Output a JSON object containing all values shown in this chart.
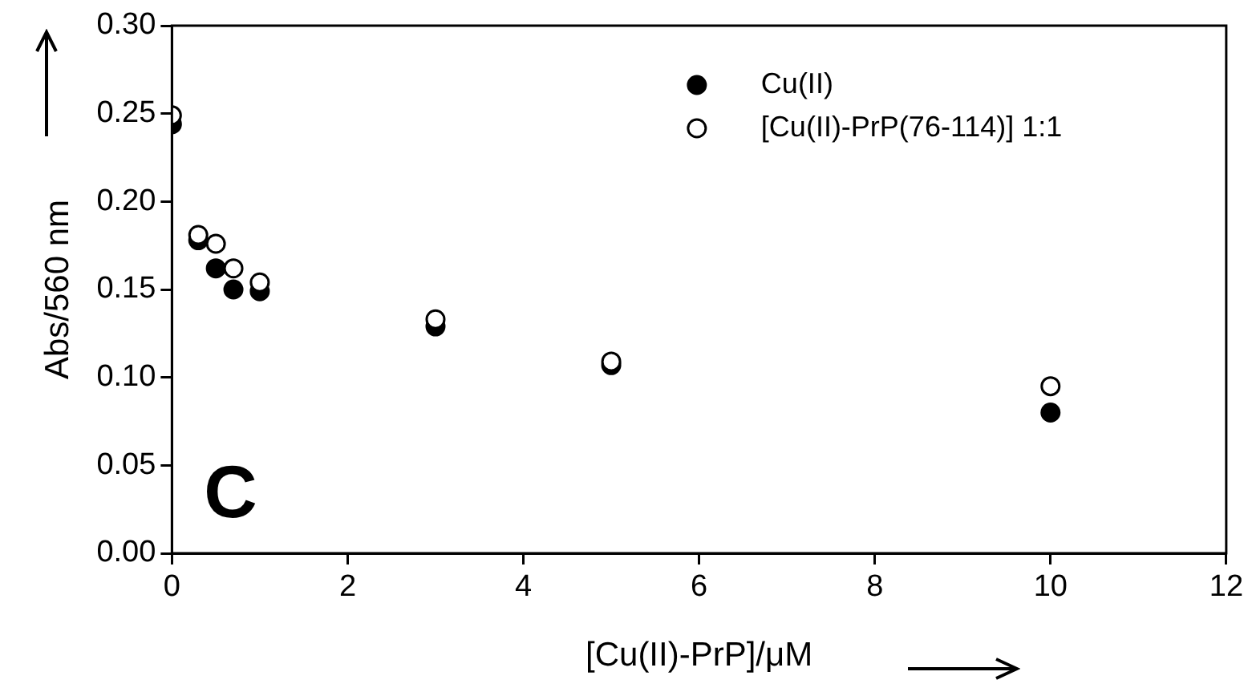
{
  "chart_data": {
    "type": "scatter",
    "xlabel": "[Cu(II)-PrP]/μM",
    "ylabel": "Abs/560 nm",
    "annotations": [
      "C"
    ],
    "xlim": [
      0,
      12
    ],
    "xticks": [
      0,
      2,
      4,
      6,
      8,
      10,
      12
    ],
    "ylim": [
      0,
      0.3
    ],
    "yticks": [
      {
        "value": 0,
        "label": "0.00"
      },
      {
        "value": 0.05,
        "label": "0.05"
      },
      {
        "value": 0.1,
        "label": "0.10"
      },
      {
        "value": 0.15,
        "label": "0.15"
      },
      {
        "value": 0.2,
        "label": "0.20"
      },
      {
        "value": 0.25,
        "label": "0.25"
      },
      {
        "value": 0.3,
        "label": "0.30"
      }
    ],
    "grid": false,
    "legend": "top right",
    "marker": "circle",
    "series": [
      {
        "name": "Cu(II)",
        "color": "#000000",
        "x": [
          0,
          0.3,
          0.5,
          0.7,
          1,
          3,
          5,
          10
        ],
        "values": [
          0.244,
          0.178,
          0.162,
          0.15,
          0.149,
          0.129,
          0.107,
          0.08
        ]
      },
      {
        "name": "[Cu(II)-PrP(76-114)] 1:1",
        "color": "#ffffff",
        "x": [
          0,
          0.3,
          0.5,
          0.7,
          1,
          3,
          5,
          10
        ],
        "values": [
          0.249,
          0.181,
          0.176,
          0.162,
          0.154,
          0.133,
          0.109,
          0.095
        ]
      }
    ]
  }
}
